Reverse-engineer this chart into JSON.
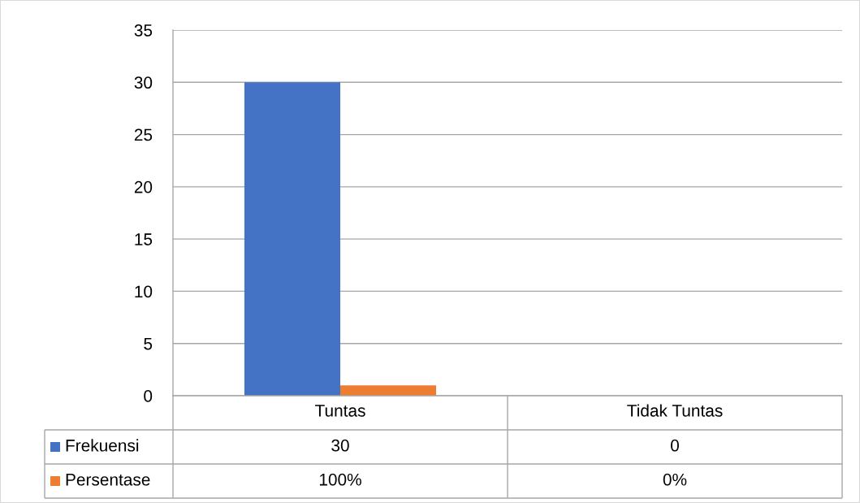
{
  "chart_data": {
    "type": "bar",
    "categories": [
      "Tuntas",
      "Tidak Tuntas"
    ],
    "series": [
      {
        "name": "Frekuensi",
        "color": "#4472c4",
        "values": [
          30,
          0
        ],
        "value_labels": [
          "30",
          "0"
        ]
      },
      {
        "name": "Persentase",
        "color": "#ed7d31",
        "values": [
          1,
          0
        ],
        "value_labels": [
          "100%",
          "0%"
        ]
      }
    ],
    "ylim": [
      0,
      35
    ],
    "yticks": [
      0,
      5,
      10,
      15,
      20,
      25,
      30,
      35
    ],
    "grid": "y",
    "legend": "bottom left"
  }
}
